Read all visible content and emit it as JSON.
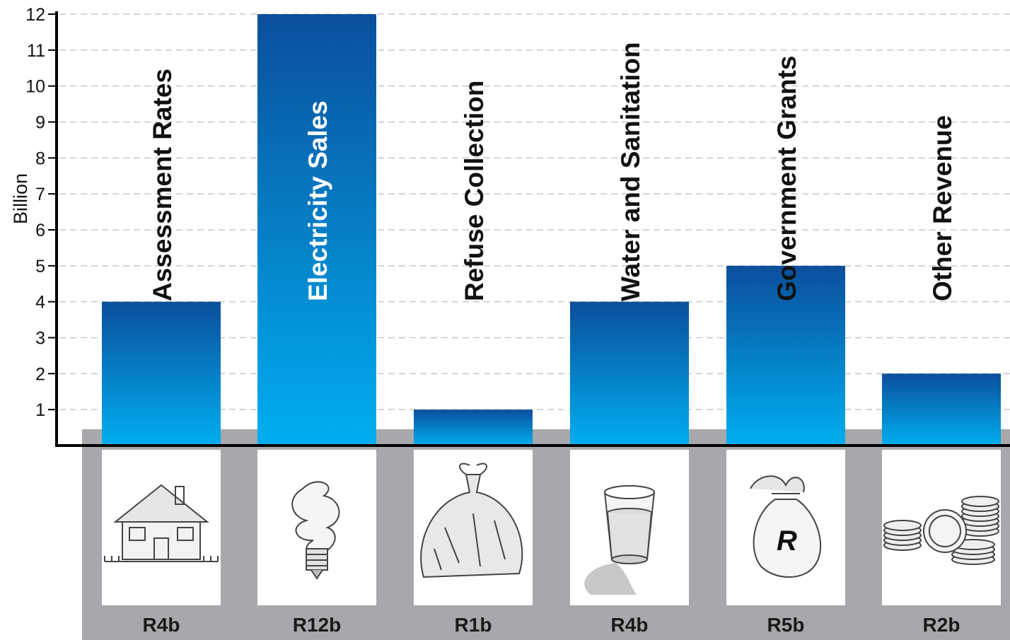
{
  "chart_data": {
    "type": "bar",
    "categories": [
      "Assessment Rates",
      "Electricity Sales",
      "Refuse Collection",
      "Water and Sanitation",
      "Government Grants",
      "Other Revenue"
    ],
    "values": [
      4,
      12,
      1,
      4,
      5,
      2
    ],
    "value_labels": [
      "R4b",
      "R12b",
      "R1b",
      "R4b",
      "R5b",
      "R2b"
    ],
    "icons": [
      "house-icon",
      "lightbulb-icon",
      "trash-bag-icon",
      "water-glass-icon",
      "money-bag-icon",
      "coins-icon"
    ],
    "money_bag_symbol": "R",
    "ylabel": "Billion",
    "ylim": [
      0,
      12
    ],
    "yticks": [
      "1",
      "2",
      "3",
      "4",
      "5",
      "6",
      "7",
      "8",
      "9",
      "10",
      "11",
      "12"
    ],
    "grid": true,
    "colors": {
      "bar_top": "#0b4f9c",
      "bar_bottom": "#00aeef",
      "panel": "#a7a8ab",
      "axis": "#000000",
      "grid": "#c8c8c8"
    }
  }
}
